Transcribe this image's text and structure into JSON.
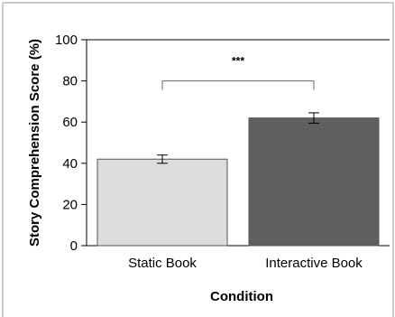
{
  "chart_data": {
    "type": "bar",
    "title": "",
    "xlabel": "Condition",
    "ylabel": "Story Comprehension Score (%)",
    "categories": [
      "Static Book",
      "Interactive Book"
    ],
    "values": [
      42,
      62
    ],
    "errors": [
      2,
      2.5
    ],
    "bar_colors": [
      "#dcdcdc",
      "#606060"
    ],
    "ylim": [
      0,
      100
    ],
    "yticks": [
      "0",
      "20",
      "40",
      "60",
      "80",
      "100"
    ],
    "grid": false,
    "legend": "none",
    "significance": {
      "label": "***",
      "between": [
        "Static Book",
        "Interactive Book"
      ],
      "bracket_y": 80
    }
  }
}
